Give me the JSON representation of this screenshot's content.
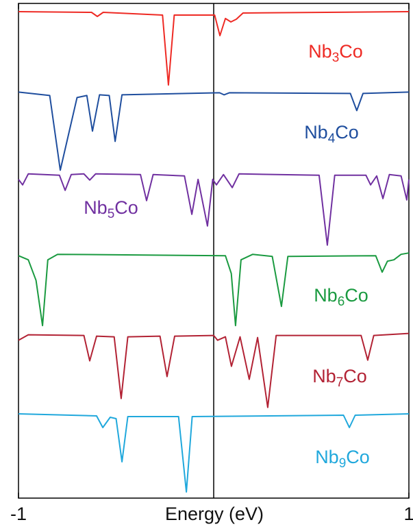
{
  "chart_data": {
    "type": "line",
    "x_label": "Energy (eV)",
    "xlim": [
      -1,
      1
    ],
    "xticks": [
      -1,
      1
    ],
    "vline": 0,
    "series": [
      {
        "name": "Nb3Co",
        "color": "#ee2a24",
        "x": [
          -1,
          -0.626,
          -0.596,
          -0.566,
          -0.262,
          -0.232,
          -0.202,
          0.005,
          0.032,
          0.06,
          0.088,
          0.116,
          0.15,
          1
        ],
        "values": [
          0,
          -0.01,
          -0.07,
          -0.01,
          -0.05,
          -1.07,
          -0.05,
          -0.05,
          -0.35,
          -0.1,
          -0.15,
          -0.11,
          -0.02,
          0
        ]
      },
      {
        "name": "Nb4Co",
        "color": "#1f4e9e",
        "x": [
          -1,
          -0.84,
          -0.786,
          -0.7,
          -0.65,
          -0.621,
          -0.585,
          -0.535,
          -0.505,
          -0.47,
          0.03,
          0.053,
          0.08,
          0.7,
          0.733,
          0.765,
          1
        ],
        "values": [
          0,
          -0.05,
          -1.14,
          -0.08,
          -0.05,
          -0.57,
          -0.04,
          -0.05,
          -0.72,
          -0.04,
          -0.01,
          -0.04,
          -0.01,
          -0.02,
          -0.27,
          -0.02,
          0
        ]
      },
      {
        "name": "Nb5Co",
        "color": "#7030a0",
        "x": [
          -1,
          -0.979,
          -0.95,
          -0.79,
          -0.761,
          -0.73,
          -0.665,
          -0.635,
          -0.605,
          -0.375,
          -0.344,
          -0.31,
          -0.15,
          -0.112,
          -0.08,
          -0.032,
          -0.005,
          0.014,
          0.05,
          0.095,
          0.13,
          0.54,
          0.582,
          0.62,
          0.78,
          0.804,
          0.835,
          0.867,
          0.9,
          0.96,
          0.989,
          1
        ],
        "values": [
          -0.1,
          -0.18,
          -0.02,
          -0.04,
          -0.26,
          -0.03,
          -0.02,
          -0.11,
          -0.02,
          -0.03,
          -0.41,
          -0.03,
          -0.05,
          -0.61,
          -0.1,
          -0.78,
          -0.1,
          -0.18,
          -0.03,
          -0.22,
          -0.02,
          -0.04,
          -1.06,
          -0.04,
          -0.04,
          -0.18,
          -0.05,
          -0.38,
          -0.03,
          -0.05,
          -0.4,
          -0.1
        ]
      },
      {
        "name": "Nb6Co",
        "color": "#1a9a40",
        "x": [
          -1,
          -0.95,
          -0.91,
          -0.877,
          -0.85,
          -0.8,
          0.06,
          0.09,
          0.112,
          0.14,
          0.2,
          0.3,
          0.347,
          0.38,
          0.83,
          0.863,
          0.89,
          0.923,
          0.96,
          1
        ],
        "values": [
          -0.04,
          -0.1,
          -0.4,
          -1.06,
          -0.1,
          -0.02,
          -0.04,
          -0.3,
          -1.06,
          -0.1,
          -0.02,
          -0.05,
          -0.78,
          -0.05,
          -0.04,
          -0.28,
          -0.12,
          -0.1,
          -0.02,
          0
        ]
      },
      {
        "name": "Nb7Co",
        "color": "#b22234",
        "x": [
          -1,
          -0.95,
          -0.665,
          -0.635,
          -0.6,
          -0.51,
          -0.474,
          -0.44,
          -0.275,
          -0.239,
          -0.2,
          0,
          0.02,
          0.06,
          0.091,
          0.135,
          0.182,
          0.225,
          0.277,
          0.32,
          0.755,
          0.789,
          0.82,
          1
        ],
        "values": [
          -0.1,
          -0.02,
          -0.03,
          -0.4,
          -0.04,
          -0.05,
          -0.95,
          -0.05,
          -0.04,
          -0.63,
          -0.04,
          -0.03,
          -0.1,
          -0.05,
          -0.48,
          -0.05,
          -0.67,
          -0.06,
          -1.08,
          -0.03,
          -0.03,
          -0.39,
          -0.03,
          0
        ]
      },
      {
        "name": "Nb9Co",
        "color": "#20a8dc",
        "x": [
          -1,
          -0.6,
          -0.568,
          -0.53,
          -0.5,
          -0.47,
          -0.44,
          -0.18,
          -0.14,
          -0.11,
          0.665,
          0.695,
          0.725,
          1
        ],
        "values": [
          0,
          -0.03,
          -0.2,
          -0.05,
          -0.07,
          -0.7,
          -0.04,
          -0.04,
          -1.14,
          -0.04,
          -0.02,
          -0.2,
          -0.02,
          0
        ]
      }
    ]
  }
}
